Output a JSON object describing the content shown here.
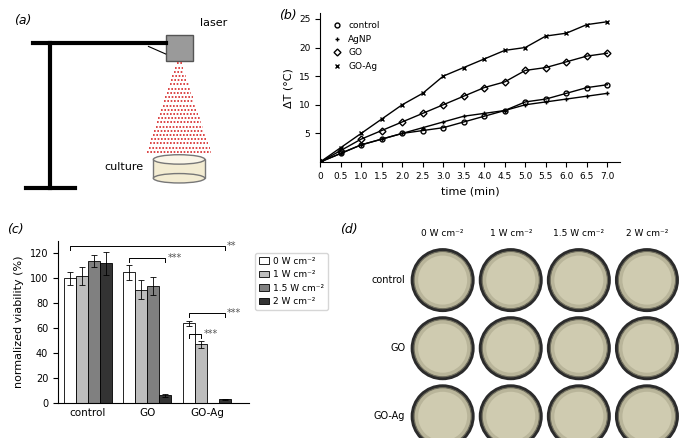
{
  "chart_data": [
    {
      "type": "diagram",
      "title": "(a)",
      "nodes": [
        {
          "label": "laser"
        },
        {
          "label": "culture"
        }
      ]
    },
    {
      "type": "line",
      "title": "(b)",
      "x_label": "time (min)",
      "y_label": "ΔT (°C)",
      "x": [
        0,
        0.5,
        1,
        1.5,
        2,
        2.5,
        3,
        3.5,
        4,
        4.5,
        5,
        5.5,
        6,
        6.5,
        7
      ],
      "xlim": [
        0,
        7.3
      ],
      "xticks": [
        0,
        0.5,
        {
          "value": 1,
          "label": "1.0"
        },
        1.5,
        {
          "value": 2,
          "label": "2.0"
        },
        2.5,
        {
          "value": 3,
          "label": "3.0"
        },
        3.5,
        {
          "value": 4,
          "label": "4.0"
        },
        4.5,
        {
          "value": 5,
          "label": "5.0"
        },
        5.5,
        {
          "value": 6,
          "label": "6.0"
        },
        6.5,
        {
          "value": 7,
          "label": "7.0"
        }
      ],
      "ylim": [
        0,
        26
      ],
      "yticks": [
        5,
        10,
        15,
        20,
        25
      ],
      "legend": "upper left",
      "series": [
        {
          "name": "control",
          "color": "#000000",
          "marker": "circle",
          "values": [
            0,
            1.5,
            3,
            4,
            5,
            5.5,
            6,
            7,
            8,
            9,
            10.5,
            11,
            12,
            13,
            13.5
          ]
        },
        {
          "name": "AgNP",
          "color": "#000000",
          "marker": "plus",
          "values": [
            0,
            1.5,
            3,
            4,
            5,
            6,
            7,
            8,
            8.5,
            9,
            10,
            10.5,
            11,
            11.5,
            12
          ]
        },
        {
          "name": "GO",
          "color": "#000000",
          "marker": "diamond",
          "values": [
            0,
            2,
            4,
            5.5,
            7,
            8.5,
            10,
            11.5,
            13,
            14,
            16,
            16.5,
            17.5,
            18.5,
            19
          ]
        },
        {
          "name": "GO-Ag",
          "color": "#000000",
          "marker": "x",
          "values": [
            0,
            2.5,
            5,
            7.5,
            10,
            12,
            15,
            16.5,
            18,
            19.5,
            20,
            22,
            22.5,
            24,
            24.5
          ]
        }
      ]
    },
    {
      "type": "bar",
      "title": "(c)",
      "y_label": "normalized viability (%)",
      "categories": [
        "control",
        "GO",
        "GO-Ag"
      ],
      "ylim": [
        0,
        130
      ],
      "yticks": [
        0,
        20,
        40,
        60,
        80,
        100,
        120
      ],
      "legend": "right",
      "series": [
        {
          "name": "0 W cm⁻²",
          "color": "#ffffff",
          "values": [
            100,
            105,
            64
          ],
          "errors": [
            5,
            6,
            2
          ]
        },
        {
          "name": "1 W cm⁻²",
          "color": "#bdbdbd",
          "values": [
            102,
            91,
            47
          ],
          "errors": [
            7,
            8,
            3
          ]
        },
        {
          "name": "1.5 W cm⁻²",
          "color": "#808080",
          "values": [
            114,
            94,
            0
          ],
          "errors": [
            5,
            7,
            0
          ]
        },
        {
          "name": "2 W cm⁻²",
          "color": "#333333",
          "values": [
            112,
            6,
            3
          ],
          "errors": [
            9,
            1,
            0.5
          ]
        }
      ],
      "annotations": [
        {
          "text": "**",
          "from": [
            0,
            0
          ],
          "to": [
            2,
            3
          ],
          "y": 126
        },
        {
          "text": "***",
          "from": [
            1,
            0
          ],
          "to": [
            1,
            3
          ],
          "y": 116
        },
        {
          "text": "***",
          "from": [
            2,
            0
          ],
          "to": [
            2,
            3
          ],
          "y": 72
        },
        {
          "text": "***",
          "from": [
            2,
            0
          ],
          "to": [
            2,
            1
          ],
          "y": 55
        }
      ]
    },
    {
      "type": "image_grid",
      "title": "(d)",
      "columns": [
        "0 W cm⁻²",
        "1 W cm⁻²",
        "1.5 W cm⁻²",
        "2 W cm⁻²"
      ],
      "rows": [
        "control",
        "GO",
        "GO-Ag"
      ]
    }
  ]
}
